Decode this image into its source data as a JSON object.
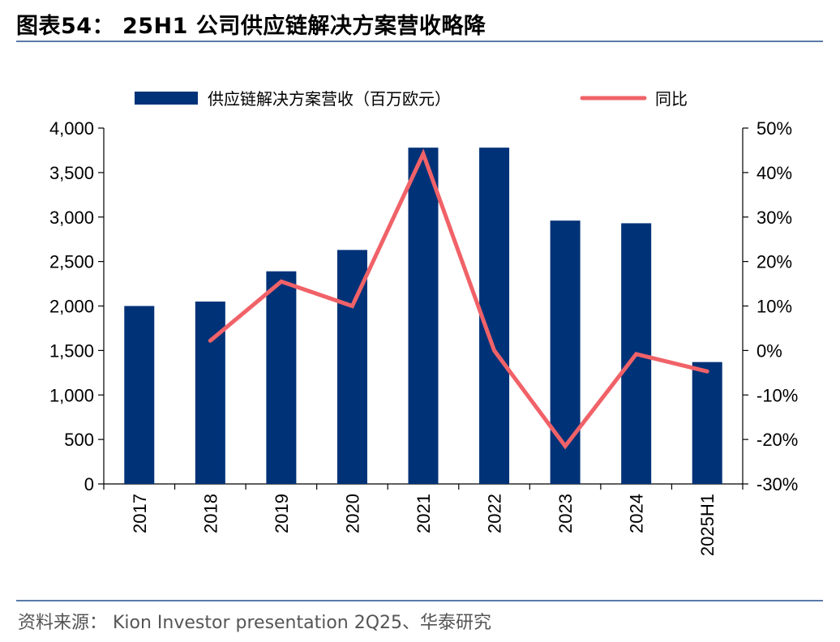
{
  "title": "图表54：  25H1 公司供应链解决方案营收略降",
  "source": "资料来源：  Kion Investor presentation 2Q25、华泰研究",
  "colors": {
    "bar": "#003278",
    "line": "#f06268",
    "rule": "#5a79a8"
  },
  "chart_data": {
    "type": "bar",
    "categories": [
      "2017",
      "2018",
      "2019",
      "2020",
      "2021",
      "2022",
      "2023",
      "2024",
      "2025H1"
    ],
    "series": [
      {
        "name": "供应链解决方案营收（百万欧元）",
        "type": "bar",
        "axis": "left",
        "values": [
          2000,
          2050,
          2390,
          2630,
          3780,
          3780,
          2960,
          2930,
          1370
        ]
      },
      {
        "name": "同比",
        "type": "line",
        "axis": "right",
        "values": [
          null,
          2.2,
          15.5,
          10.0,
          44.2,
          0.0,
          -21.5,
          -0.8,
          -4.7
        ]
      }
    ],
    "y_left": {
      "min": 0,
      "max": 4000,
      "step": 500,
      "ticks": [
        "0",
        "500",
        "1,000",
        "1,500",
        "2,000",
        "2,500",
        "3,000",
        "3,500",
        "4,000"
      ]
    },
    "y_right": {
      "min": -30,
      "max": 50,
      "step": 10,
      "ticks": [
        "-30%",
        "-20%",
        "-10%",
        "0%",
        "10%",
        "20%",
        "30%",
        "40%",
        "50%"
      ]
    },
    "legend": "top"
  }
}
